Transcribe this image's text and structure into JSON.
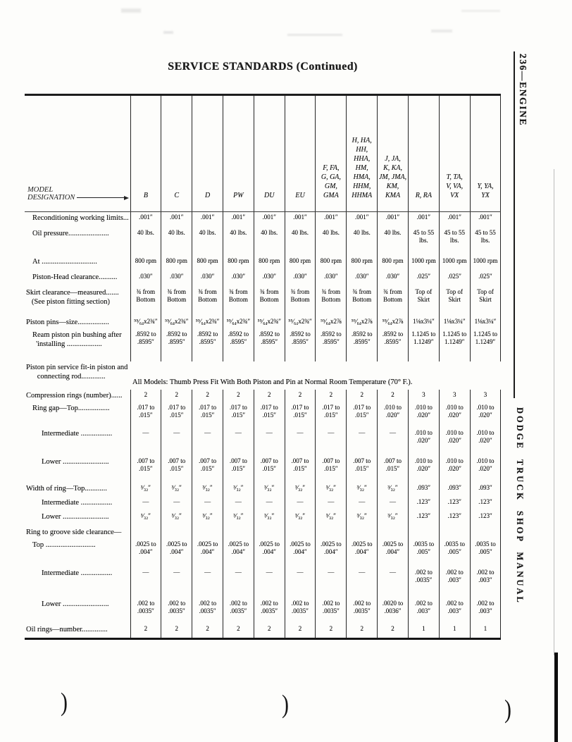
{
  "page": {
    "title": "SERVICE STANDARDS (Continued)",
    "margin_top_label": "236—ENGINE",
    "margin_bottom_label": "DODGE TRUCK SHOP MANUAL",
    "bottom_marks": [
      ")",
      ")",
      ")"
    ]
  },
  "table": {
    "model_designation": {
      "line1": "MODEL",
      "line2": "DESIGNATION"
    },
    "columns": [
      "B",
      "C",
      "D",
      "PW",
      "DU",
      "EU",
      "F, FA,\nG, GA,\nGM,\nGMA",
      "H, HA,\nHH,\nHHA,\nHM,\nHMA,\nHHM,\nHHMA",
      "J, JA,\nK, KA,\nJM, JMA,\nKM,\nKMA",
      "R, RA",
      "T, TA,\nV, VA,\nVX",
      "Y, YA,\nYX"
    ],
    "rows": [
      {
        "label": "Reconditioning working limits...",
        "indent": 1,
        "values": [
          ".001″",
          ".001″",
          ".001″",
          ".001″",
          ".001″",
          ".001″",
          ".001″",
          ".001″",
          ".001″",
          ".001″",
          ".001″",
          ".001″"
        ]
      },
      {
        "label": "Oil pressure......................",
        "indent": 1,
        "values": [
          "40 lbs.",
          "40 lbs.",
          "40 lbs.",
          "40 lbs.",
          "40 lbs.",
          "40 lbs.",
          "40 lbs.",
          "40 lbs.",
          "40 lbs.",
          "45 to 55\nlbs.",
          "45 to 55\nlbs.",
          "45 to 55\nlbs."
        ]
      },
      {
        "label": "At ..............................",
        "indent": 1,
        "values": [
          "800 rpm",
          "800 rpm",
          "800 rpm",
          "800 rpm",
          "800 rpm",
          "800 rpm",
          "800 rpm",
          "800 rpm",
          "800 rpm",
          "1000 rpm",
          "1000 rpm",
          "1000 rpm"
        ]
      },
      {
        "label": "Piston-Head clearance..........",
        "indent": 1,
        "values": [
          ".030″",
          ".030″",
          ".030″",
          ".030″",
          ".030″",
          ".030″",
          ".030″",
          ".030″",
          ".030″",
          ".025″",
          ".025″",
          ".025″"
        ]
      },
      {
        "label": "Skirt clearance—measured.......\n   (See piston fitting section)",
        "indent": 0,
        "values": [
          "¾ from\nBottom",
          "¾ from\nBottom",
          "¾ from\nBottom",
          "¾ from\nBottom",
          "¾ from\nBottom",
          "¾ from\nBottom",
          "¾ from\nBottom",
          "¾ from\nBottom",
          "¾ from\nBottom",
          "Top of\nSkirt",
          "Top of\nSkirt",
          "Top of\nSkirt"
        ]
      },
      {
        "label": "Piston pins—size.................",
        "indent": 0,
        "values": [
          "⁵⁵⁄₆₄x2¾″",
          "⁵⁵⁄₆₄x2¾″",
          "⁵⁵⁄₆₄x2¾″",
          "⁵⁵⁄₆₄x2¾″",
          "⁵⁵⁄₆₄x2¾″",
          "⁵⁵⁄₆₄x2¾″",
          "⁵⁵⁄₆₄x2⅞",
          "⁵⁵⁄₆₄x2⅞",
          "⁵⁵⁄₆₄x2⅞",
          "1⅛x3¼″",
          "1⅛x3¼″",
          "1⅛x3¼″"
        ]
      },
      {
        "label": "Ream piston pin bushing after\n  'installing ...................",
        "indent": 1,
        "values": [
          ".8592 to\n.8595″",
          ".8592 to\n.8595″",
          ".8592 to\n.8595″",
          ".8592 to\n.8595″",
          ".8592 to\n.8595″",
          ".8592 to\n.8595″",
          ".8592 to\n.8595″",
          ".8592 to\n.8595″",
          ".8592 to\n.8595″",
          "1.1245 to\n1.1249″",
          "1.1245 to\n1.1249″",
          "1.1245 to\n1.1249″"
        ]
      },
      {
        "label": "Piston pin service fit-in piston and\n      connecting rod.............",
        "indent": 0,
        "span": "All Models: Thumb Press Fit With Both Piston and Pin at Normal Room Temperature (70° F.)."
      },
      {
        "label": "Compression rings (number)......",
        "indent": 0,
        "values": [
          "2",
          "2",
          "2",
          "2",
          "2",
          "2",
          "2",
          "2",
          "2",
          "3",
          "3",
          "3"
        ]
      },
      {
        "label": "Ring gap—Top.................",
        "indent": 1,
        "values": [
          ".017 to\n.015″",
          ".017 to\n.015″",
          ".017 to\n.015″",
          ".017 to\n.015″",
          ".017 to\n.015″",
          ".017 to\n.015″",
          ".017 to\n.015″",
          ".017 to\n.015″",
          ".010 to\n.020″",
          ".010 to\n.020″",
          ".010 to\n.020″",
          ".010 to\n.020″"
        ]
      },
      {
        "label": "Intermediate .................",
        "indent": 2,
        "values": [
          "—",
          "—",
          "—",
          "—",
          "—",
          "—",
          "—",
          "—",
          "—",
          ".010 to\n.020″",
          ".010 to\n.020″",
          ".010 to\n.020″"
        ]
      },
      {
        "label": "Lower .........................",
        "indent": 2,
        "values": [
          ".007 to\n.015″",
          ".007 to\n.015″",
          ".007 to\n.015″",
          ".007 to\n.015″",
          ".007 to\n.015″",
          ".007 to\n.015″",
          ".007 to\n.015″",
          ".007 to\n.015″",
          ".007 to\n.015″",
          ".010 to\n.020″",
          ".010 to\n.020″",
          ".010 to\n.020″"
        ]
      },
      {
        "label": "Width of ring—Top............",
        "indent": 0,
        "values": [
          "³⁄₃₂″",
          "³⁄₃₂″",
          "³⁄₃₂″",
          "³⁄₃₂″",
          "³⁄₃₂″",
          "³⁄₃₂″",
          "³⁄₃₂″",
          "³⁄₃₂″",
          "³⁄₃₂″",
          ".093″",
          ".093″",
          ".093″"
        ]
      },
      {
        "label": "Intermediate .................",
        "indent": 2,
        "values": [
          "—",
          "—",
          "—",
          "—",
          "—",
          "—",
          "—",
          "—",
          "—",
          ".123″",
          ".123″",
          ".123″"
        ]
      },
      {
        "label": "Lower .........................",
        "indent": 2,
        "values": [
          "³⁄₃₂″",
          "³⁄₃₂″",
          "³⁄₃₂″",
          "³⁄₃₂″",
          "³⁄₃₂″",
          "³⁄₃₂″",
          "³⁄₃₂″",
          "³⁄₃₂″",
          "³⁄₃₂″",
          ".123″",
          ".123″",
          ".123″"
        ]
      },
      {
        "label": "Ring to groove side clearance—",
        "indent": 0,
        "values": [
          "",
          "",
          "",
          "",
          "",
          "",
          "",
          "",
          "",
          "",
          "",
          ""
        ]
      },
      {
        "label": "Top ...........................",
        "indent": 1,
        "values": [
          ".0025 to\n.004″",
          ".0025 to\n.004″",
          ".0025 to\n.004″",
          ".0025 to\n.004″",
          ".0025 to\n.004″",
          ".0025 to\n.004″",
          ".0025 to\n.004″",
          ".0025 to\n.004″",
          ".0025 to\n.004″",
          ".0035 to\n.005″",
          ".0035 to\n.005″",
          ".0035 to\n.005″"
        ]
      },
      {
        "label": "Intermediate .................",
        "indent": 2,
        "values": [
          "—",
          "—",
          "—",
          "—",
          "—",
          "—",
          "—",
          "—",
          "—",
          ".002 to\n.0035″",
          ".002 to\n.003″",
          ".002 to\n.003″"
        ]
      },
      {
        "label": "Lower .........................",
        "indent": 2,
        "values": [
          ".002 to\n.0035″",
          ".002 to\n.0035″",
          ".002 to\n.0035″",
          ".002 to\n.0035″",
          ".002 to\n.0035″",
          ".002 to\n.0035″",
          ".002 to\n.0035″",
          ".002 to\n.0035″",
          ".0020 to\n.0036″",
          ".002 to\n.003″",
          ".002 to\n.003″",
          ".002 to\n.003″"
        ]
      },
      {
        "label": "Oil rings—number..............",
        "indent": 0,
        "values": [
          "2",
          "2",
          "2",
          "2",
          "2",
          "2",
          "2",
          "2",
          "2",
          "1",
          "1",
          "1"
        ]
      }
    ]
  }
}
